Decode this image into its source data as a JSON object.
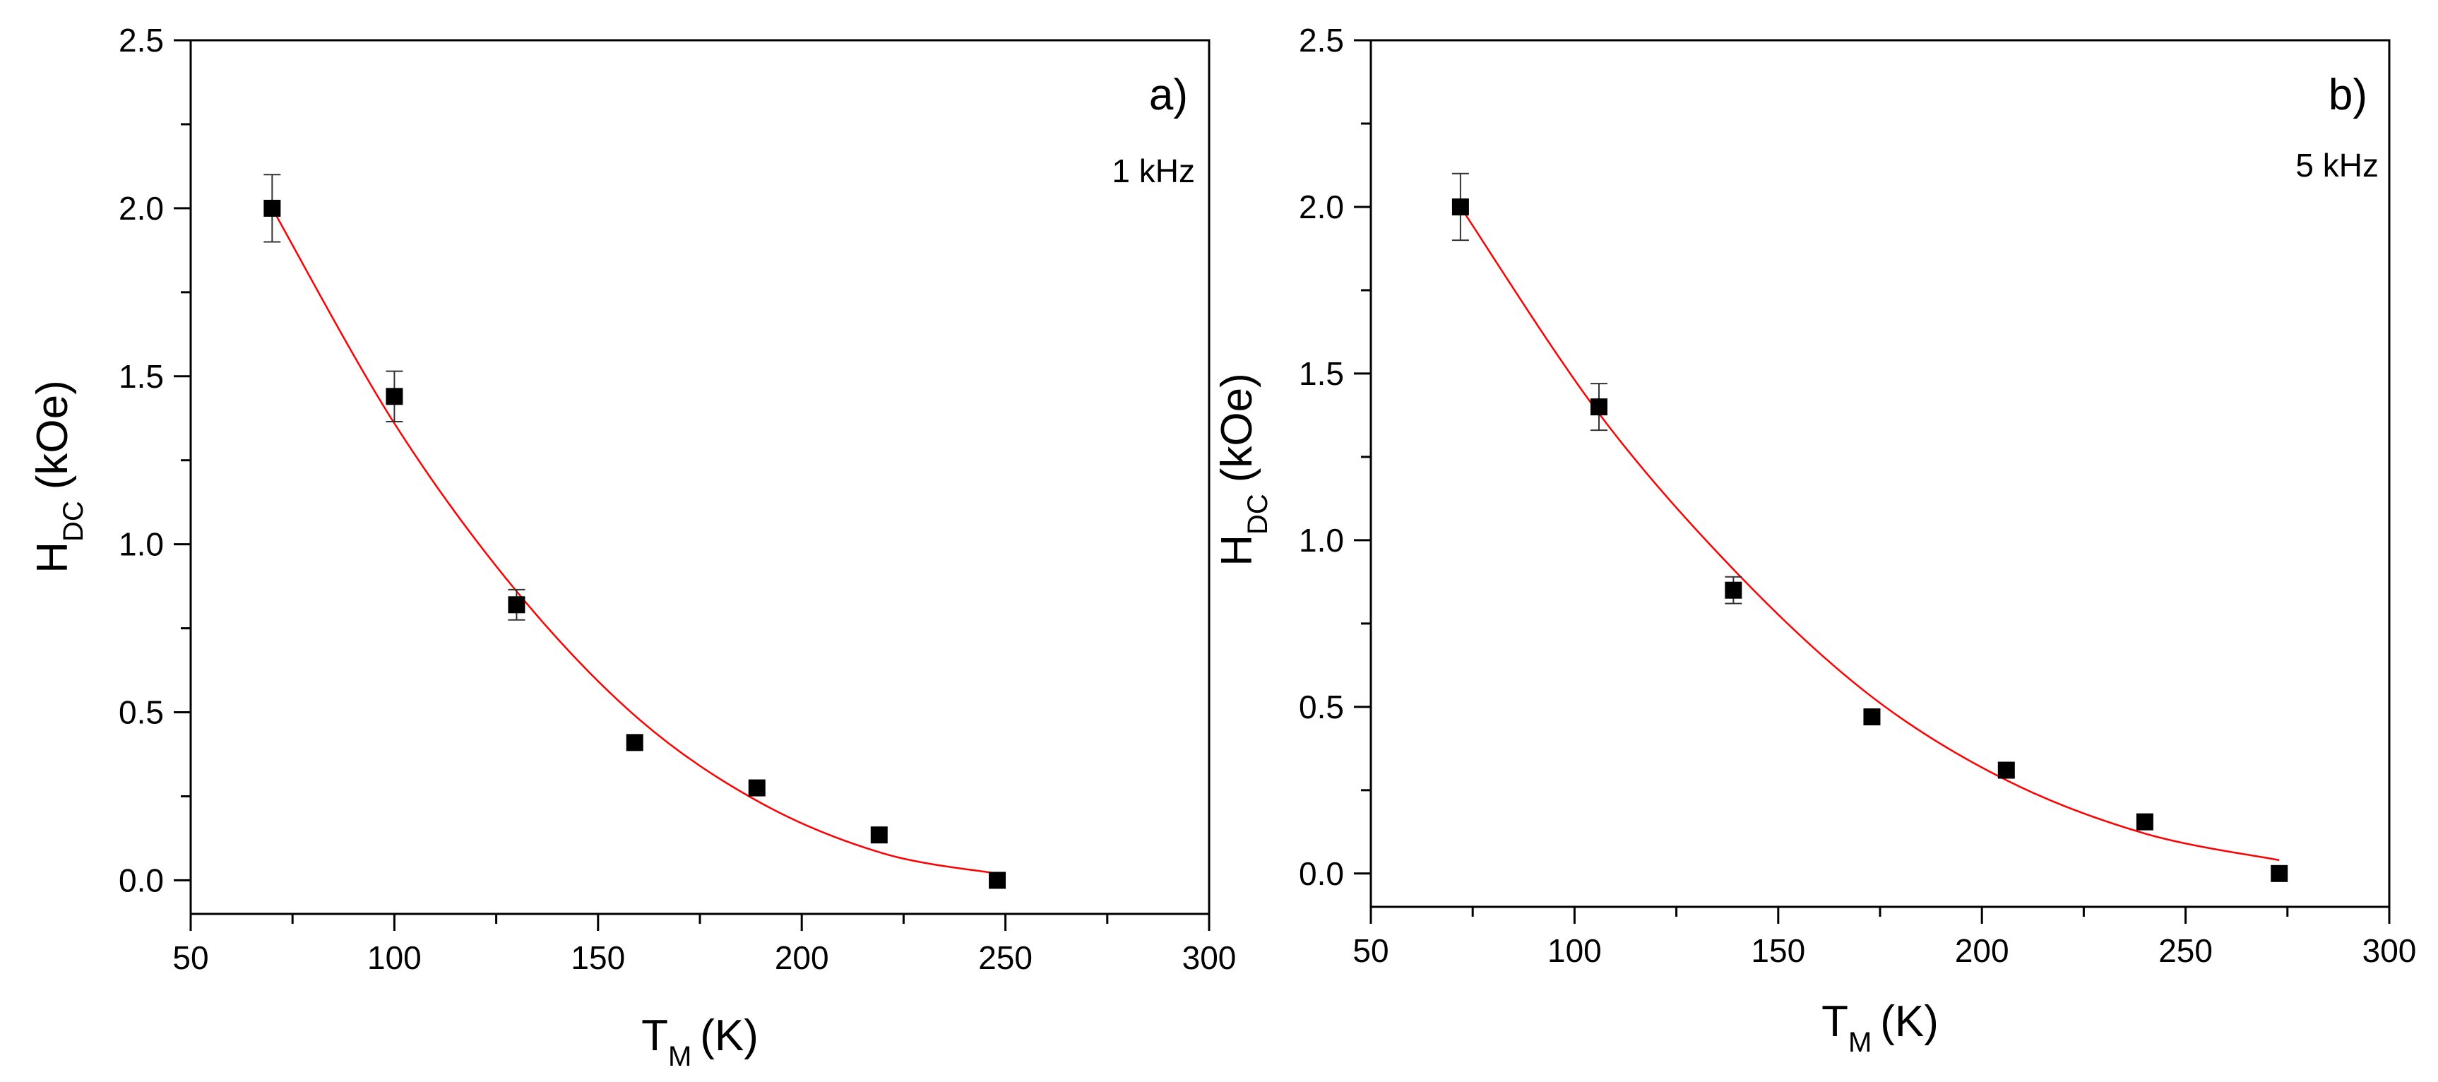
{
  "chart_data": [
    {
      "type": "scatter",
      "panel": "a)",
      "annotation": "1 kHz",
      "xlabel": {
        "main": "T",
        "sub": "M",
        "unit": "(K)"
      },
      "ylabel": {
        "main": "H",
        "sub": "DC",
        "unit": "(kOe)"
      },
      "xlim": [
        50,
        300
      ],
      "ylim": [
        -0.1,
        2.5
      ],
      "xticks": [
        "50",
        "100",
        "150",
        "200",
        "250",
        "300"
      ],
      "yticks": [
        "0.0",
        "0.5",
        "1.0",
        "1.5",
        "2.0",
        "2.5"
      ],
      "series": [
        {
          "name": "data",
          "marker": "square",
          "color": "#000000",
          "x": [
            70,
            100,
            130,
            159,
            189,
            219,
            248
          ],
          "y": [
            2.0,
            1.44,
            0.82,
            0.41,
            0.275,
            0.135,
            0.0
          ],
          "yerr": [
            0.1,
            0.075,
            0.045,
            0.0,
            0.0,
            0.0,
            0.0
          ]
        },
        {
          "name": "fit",
          "type": "line",
          "color": "#ff0000",
          "x_range": [
            70,
            248
          ],
          "points": [
            [
              70,
              2.0
            ],
            [
              100,
              1.36
            ],
            [
              130,
              0.86
            ],
            [
              160,
              0.48
            ],
            [
              190,
              0.23
            ],
            [
              220,
              0.08
            ],
            [
              248,
              0.02
            ]
          ]
        }
      ]
    },
    {
      "type": "scatter",
      "panel": "b)",
      "annotation": "5 kHz",
      "xlabel": {
        "main": "T",
        "sub": "M",
        "unit": "(K)"
      },
      "ylabel": {
        "main": "H",
        "sub": "DC",
        "unit": "(kOe)"
      },
      "xlim": [
        50,
        300
      ],
      "ylim": [
        -0.1,
        2.5
      ],
      "xticks": [
        "50",
        "100",
        "150",
        "200",
        "250",
        "300"
      ],
      "yticks": [
        "0.0",
        "0.5",
        "1.0",
        "1.5",
        "2.0",
        "2.5"
      ],
      "series": [
        {
          "name": "data",
          "marker": "square",
          "color": "#000000",
          "x": [
            72,
            106,
            139,
            173,
            206,
            240,
            273
          ],
          "y": [
            2.0,
            1.4,
            0.85,
            0.47,
            0.31,
            0.155,
            0.0
          ],
          "yerr": [
            0.1,
            0.07,
            0.04,
            0.0,
            0.0,
            0.0,
            0.0
          ]
        },
        {
          "name": "fit",
          "type": "line",
          "color": "#ff0000",
          "x_range": [
            72,
            273
          ],
          "points": [
            [
              72,
              2.0
            ],
            [
              106,
              1.38
            ],
            [
              140,
              0.9
            ],
            [
              173,
              0.53
            ],
            [
              206,
              0.28
            ],
            [
              240,
              0.12
            ],
            [
              273,
              0.04
            ]
          ]
        }
      ]
    }
  ]
}
